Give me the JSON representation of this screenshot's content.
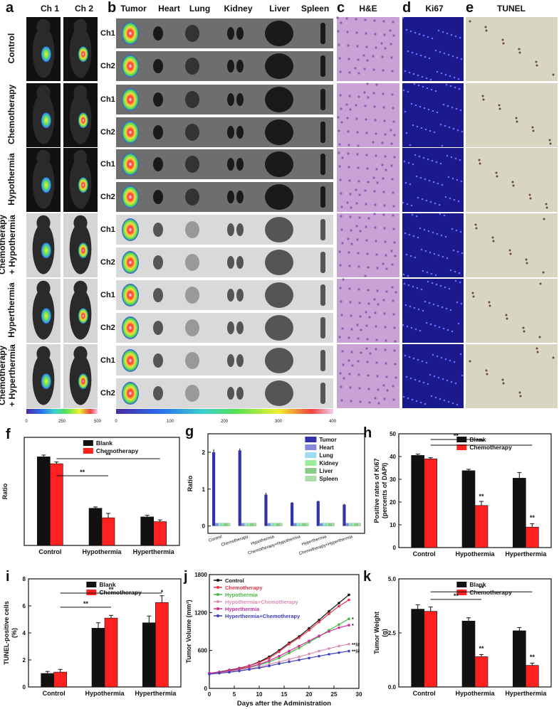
{
  "panel_letters": {
    "a": "a",
    "b": "b",
    "c": "c",
    "d": "d",
    "e": "e",
    "f": "f",
    "g": "g",
    "h": "h",
    "i": "i",
    "j": "j",
    "k": "k"
  },
  "imaging": {
    "a_cols": [
      "Ch 1",
      "Ch 2"
    ],
    "b_cols": [
      "Tumor",
      "Heart",
      "Lung",
      "Kidney",
      "Liver",
      "Spleen"
    ],
    "c_head": "H&E",
    "d_head": "Ki67",
    "e_head": "TUNEL",
    "groups": [
      "Control",
      "Chemotherapy",
      "Hypothermia",
      "Chemotherapy + Hypothermia",
      "Hyperthermia",
      "Chemotherapy + Hyperthermia"
    ],
    "channels": [
      "Ch1",
      "Ch2"
    ],
    "scale_a": [
      "0",
      "250",
      "500"
    ],
    "scale_b": [
      "0",
      "100",
      "200",
      "300",
      "400"
    ],
    "colors": {
      "control_bg": "#6e6e6e",
      "treat_bg": "#d9d9d9",
      "he": "#c9a3d6",
      "ki67": "#1a1a8c",
      "tunel": "#d8d6c0"
    }
  },
  "chart_data": [
    {
      "id": "f",
      "type": "bar",
      "categories": [
        "Control",
        "Hypothermia",
        "Hyperthermia"
      ],
      "series": [
        {
          "name": "Blank",
          "color": "#111111",
          "values": [
            2.05,
            0.86,
            0.66
          ],
          "errors": [
            0.04,
            0.03,
            0.04
          ]
        },
        {
          "name": "Chemotherapy",
          "color": "#ff2020",
          "values": [
            1.89,
            0.64,
            0.55
          ],
          "errors": [
            0.04,
            0.1,
            0.04
          ]
        }
      ],
      "ylabel": "Ratio",
      "ylim": [
        0,
        2.5
      ],
      "yticks": [],
      "sig": [
        "**",
        "**"
      ]
    },
    {
      "id": "g",
      "type": "bar",
      "categories": [
        "Control",
        "Chemotherapy",
        "Hypothermia",
        "Chemotherapy+Hypothermia",
        "Hyperthermia",
        "Chemotherapy+Hyperthermia"
      ],
      "series": [
        {
          "name": "Tumor",
          "color": "#3333aa",
          "values": [
            2.0,
            2.05,
            0.85,
            0.63,
            0.67,
            0.58
          ],
          "errors": [
            0.08,
            0.05,
            0.05,
            0.02,
            0.02,
            0.02
          ]
        },
        {
          "name": "Heart",
          "color": "#8888dd",
          "values": [
            0,
            0,
            0,
            0,
            0,
            0
          ]
        },
        {
          "name": "Lung",
          "color": "#99ddee",
          "values": [
            0,
            0,
            0,
            0,
            0,
            0
          ]
        },
        {
          "name": "Kidney",
          "color": "#99ee99",
          "values": [
            0,
            0,
            0,
            0,
            0,
            0
          ]
        },
        {
          "name": "Liver",
          "color": "#88cc88",
          "values": [
            0,
            0,
            0,
            0,
            0,
            0
          ]
        },
        {
          "name": "Spleen",
          "color": "#aaddaa",
          "values": [
            0,
            0,
            0,
            0,
            0,
            0
          ]
        }
      ],
      "ylabel": "Ratio",
      "ylim": [
        -0.2,
        2.5
      ],
      "yticks": [
        "0",
        "1",
        "2"
      ]
    },
    {
      "id": "h",
      "type": "bar",
      "categories": [
        "Control",
        "Hypothermia",
        "Hyperthermia"
      ],
      "series": [
        {
          "name": "Blank",
          "color": "#111111",
          "values": [
            40.5,
            33.8,
            30.5
          ],
          "errors": [
            0.6,
            0.6,
            2.5
          ]
        },
        {
          "name": "Chemotherapy",
          "color": "#ff2020",
          "values": [
            39,
            18.5,
            9
          ],
          "errors": [
            0.5,
            1.8,
            1.5
          ]
        }
      ],
      "ylabel": "Positive rates of Ki67 (percents of DAPI)",
      "ylim": [
        0,
        50
      ],
      "yticks": [
        "0",
        "10",
        "20",
        "30",
        "40",
        "50"
      ],
      "sig": [
        "**",
        "**"
      ],
      "bar_sig": [
        "**",
        "**"
      ]
    },
    {
      "id": "i",
      "type": "bar",
      "categories": [
        "Control",
        "Hypothermia",
        "Hyperthermia"
      ],
      "series": [
        {
          "name": "Blank",
          "color": "#111111",
          "values": [
            1.0,
            4.35,
            4.75
          ],
          "errors": [
            0.15,
            0.4,
            0.5
          ]
        },
        {
          "name": "Chemotherapy",
          "color": "#ff2020",
          "values": [
            1.1,
            5.1,
            6.25
          ],
          "errors": [
            0.2,
            0.2,
            0.5
          ]
        }
      ],
      "ylabel": "TUNEL-positive cells (%)",
      "ylim": [
        0,
        8
      ],
      "yticks": [
        "0",
        "2",
        "4",
        "6",
        "8"
      ],
      "sig": [
        "**",
        "**"
      ],
      "bar_sig": [
        "*"
      ]
    },
    {
      "id": "j",
      "type": "line",
      "x": [
        0,
        2,
        4,
        6,
        8,
        10,
        12,
        14,
        16,
        18,
        20,
        22,
        24,
        26,
        28
      ],
      "series": [
        {
          "name": "Control",
          "color": "#111111",
          "values": [
            240,
            260,
            290,
            320,
            360,
            420,
            500,
            600,
            720,
            820,
            950,
            1080,
            1220,
            1350,
            1480
          ]
        },
        {
          "name": "Chemotherapy",
          "color": "#e8334a",
          "values": [
            240,
            255,
            285,
            315,
            360,
            410,
            480,
            580,
            700,
            800,
            920,
            1050,
            1180,
            1300,
            1400
          ]
        },
        {
          "name": "Hypothermia",
          "color": "#44bb44",
          "values": [
            235,
            250,
            275,
            300,
            330,
            370,
            420,
            480,
            560,
            640,
            730,
            820,
            920,
            1010,
            1100
          ]
        },
        {
          "name": "Hypothermia+Chemotherapy",
          "color": "#d98fb5",
          "values": [
            230,
            245,
            265,
            285,
            310,
            340,
            380,
            420,
            460,
            500,
            545,
            590,
            630,
            670,
            700
          ]
        },
        {
          "name": "Hyperthermia",
          "color": "#d0309a",
          "values": [
            240,
            255,
            280,
            305,
            340,
            380,
            440,
            510,
            590,
            670,
            750,
            830,
            900,
            960,
            1000
          ]
        },
        {
          "name": "Hyperthermia+Chemotherapy",
          "color": "#4040c0",
          "values": [
            225,
            240,
            255,
            275,
            300,
            325,
            355,
            390,
            420,
            450,
            480,
            510,
            540,
            565,
            590
          ]
        }
      ],
      "xlabel": "Days after the Administration",
      "ylabel": "Tumor Volume (mm³)",
      "xlim": [
        0,
        30
      ],
      "ylim": [
        0,
        1800
      ],
      "xticks": [
        "0",
        "5",
        "10",
        "15",
        "20",
        "25",
        "30"
      ],
      "yticks": [
        "0",
        "600",
        "1200",
        "1800"
      ],
      "annotations": [
        "*",
        "*",
        "**/#",
        "**/#"
      ]
    },
    {
      "id": "k",
      "type": "bar",
      "categories": [
        "Control",
        "Hypothermia",
        "Hyperthermia"
      ],
      "series": [
        {
          "name": "Blank",
          "color": "#111111",
          "values": [
            3.6,
            3.05,
            2.6
          ],
          "errors": [
            0.2,
            0.15,
            0.15
          ]
        },
        {
          "name": "Chemotherapy",
          "color": "#ff2020",
          "values": [
            3.5,
            1.4,
            1.0
          ],
          "errors": [
            0.2,
            0.1,
            0.1
          ]
        }
      ],
      "ylabel": "Tumor Weight (g)",
      "ylim": [
        0,
        5
      ],
      "yticks": [
        "0.0",
        "2.5",
        "5.0"
      ],
      "sig": [
        "**",
        "**"
      ],
      "bar_sig": [
        "**",
        "**"
      ]
    }
  ]
}
